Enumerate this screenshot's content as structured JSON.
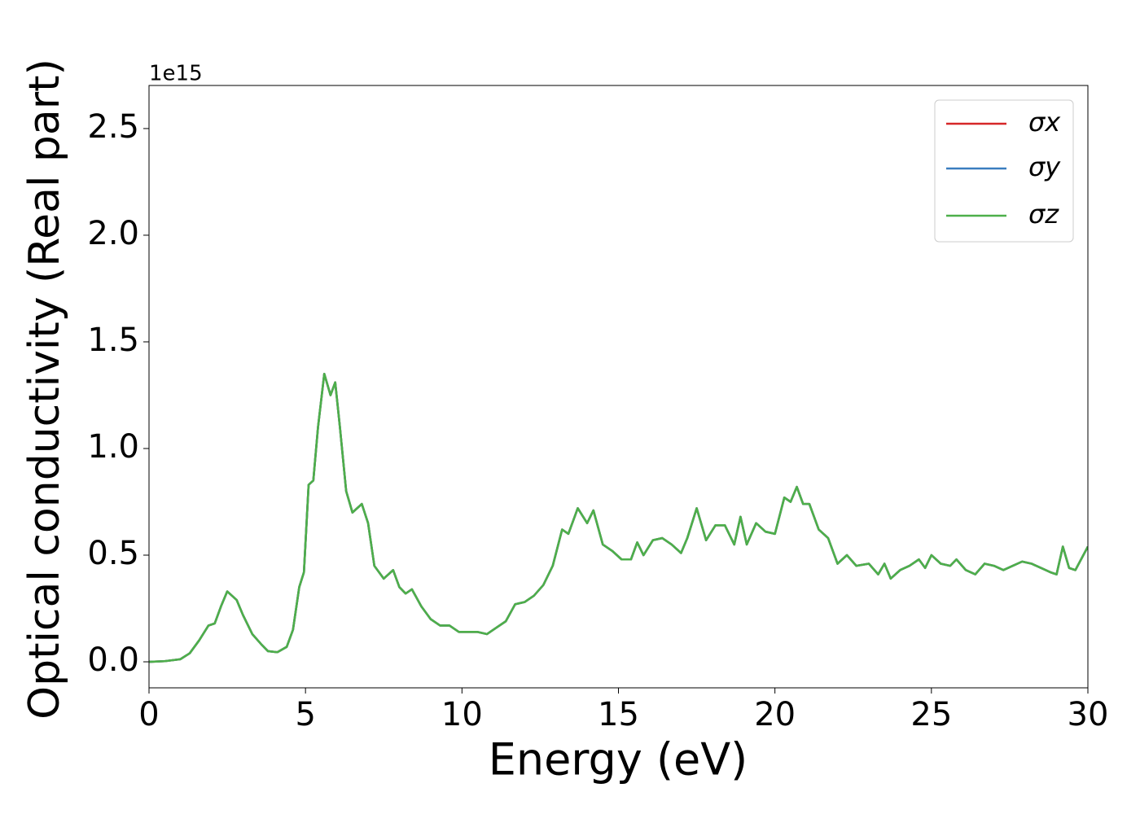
{
  "chart_data": {
    "type": "line",
    "xlabel": "Energy (eV)",
    "ylabel": "Optical conductivity (Real part)",
    "y_offset_label": "1e15",
    "xlim": [
      0,
      30
    ],
    "ylim": [
      -0.122,
      2.702
    ],
    "xticks": [
      0,
      5,
      10,
      15,
      20,
      25,
      30
    ],
    "yticks": [
      {
        "value": 0,
        "label": "0.0"
      },
      0.5,
      {
        "value": 1,
        "label": "1.0"
      },
      1.5,
      {
        "value": 2,
        "label": "2.0"
      },
      2.5
    ],
    "grid": false,
    "legend": "upper right",
    "x": [
      0,
      0.5,
      1,
      1.3,
      1.6,
      1.9,
      2.1,
      2.3,
      2.5,
      2.8,
      3.0,
      3.3,
      3.6,
      3.8,
      4.1,
      4.4,
      4.6,
      4.8,
      4.95,
      5.1,
      5.25,
      5.4,
      5.6,
      5.8,
      5.95,
      6.1,
      6.3,
      6.5,
      6.8,
      7.0,
      7.2,
      7.5,
      7.8,
      8.0,
      8.2,
      8.4,
      8.7,
      9.0,
      9.3,
      9.6,
      9.9,
      10.2,
      10.5,
      10.8,
      11.1,
      11.4,
      11.7,
      12.0,
      12.3,
      12.6,
      12.9,
      13.2,
      13.4,
      13.7,
      14.0,
      14.2,
      14.5,
      14.8,
      15.1,
      15.4,
      15.6,
      15.8,
      16.1,
      16.4,
      16.7,
      17.0,
      17.2,
      17.5,
      17.8,
      18.1,
      18.4,
      18.7,
      18.9,
      19.1,
      19.4,
      19.7,
      20.0,
      20.3,
      20.5,
      20.7,
      20.9,
      21.1,
      21.4,
      21.7,
      22.0,
      22.3,
      22.6,
      23.0,
      23.3,
      23.5,
      23.7,
      24.0,
      24.3,
      24.6,
      24.8,
      25.0,
      25.3,
      25.6,
      25.8,
      26.1,
      26.4,
      26.7,
      27.0,
      27.3,
      27.6,
      27.9,
      28.2,
      28.5,
      28.8,
      29.0,
      29.2,
      29.4,
      29.6,
      30.0
    ],
    "series": [
      {
        "name": "σx",
        "color": "#d62728",
        "values": [
          0,
          0.003,
          0.012,
          0.04,
          0.1,
          0.17,
          0.18,
          0.26,
          0.33,
          0.29,
          0.22,
          0.13,
          0.08,
          0.05,
          0.045,
          0.07,
          0.15,
          0.35,
          0.42,
          0.83,
          0.85,
          1.1,
          1.35,
          1.25,
          1.31,
          1.1,
          0.8,
          0.7,
          0.74,
          0.65,
          0.45,
          0.39,
          0.43,
          0.35,
          0.32,
          0.34,
          0.26,
          0.2,
          0.17,
          0.17,
          0.14,
          0.14,
          0.14,
          0.13,
          0.16,
          0.19,
          0.27,
          0.28,
          0.31,
          0.36,
          0.45,
          0.62,
          0.6,
          0.72,
          0.65,
          0.71,
          0.55,
          0.52,
          0.48,
          0.48,
          0.56,
          0.5,
          0.57,
          0.58,
          0.55,
          0.51,
          0.58,
          0.72,
          0.57,
          0.64,
          0.64,
          0.55,
          0.68,
          0.55,
          0.65,
          0.61,
          0.6,
          0.77,
          0.75,
          0.82,
          0.74,
          0.74,
          0.62,
          0.58,
          0.46,
          0.5,
          0.45,
          0.46,
          0.41,
          0.46,
          0.39,
          0.43,
          0.45,
          0.48,
          0.44,
          0.5,
          0.46,
          0.45,
          0.48,
          0.43,
          0.41,
          0.46,
          0.45,
          0.43,
          0.45,
          0.47,
          0.46,
          0.44,
          0.42,
          0.41,
          0.54,
          0.44,
          0.43,
          0.54
        ]
      },
      {
        "name": "σy",
        "color": "#3a7dbf",
        "values": [
          0,
          0.003,
          0.012,
          0.04,
          0.1,
          0.17,
          0.18,
          0.26,
          0.33,
          0.29,
          0.22,
          0.13,
          0.08,
          0.05,
          0.045,
          0.07,
          0.15,
          0.35,
          0.42,
          0.83,
          0.85,
          1.1,
          1.35,
          1.25,
          1.31,
          1.1,
          0.8,
          0.7,
          0.74,
          0.65,
          0.45,
          0.39,
          0.43,
          0.35,
          0.32,
          0.34,
          0.26,
          0.2,
          0.17,
          0.17,
          0.14,
          0.14,
          0.14,
          0.13,
          0.16,
          0.19,
          0.27,
          0.28,
          0.31,
          0.36,
          0.45,
          0.62,
          0.6,
          0.72,
          0.65,
          0.71,
          0.55,
          0.52,
          0.48,
          0.48,
          0.56,
          0.5,
          0.57,
          0.58,
          0.55,
          0.51,
          0.58,
          0.72,
          0.57,
          0.64,
          0.64,
          0.55,
          0.68,
          0.55,
          0.65,
          0.61,
          0.6,
          0.77,
          0.75,
          0.82,
          0.74,
          0.74,
          0.62,
          0.58,
          0.46,
          0.5,
          0.45,
          0.46,
          0.41,
          0.46,
          0.39,
          0.43,
          0.45,
          0.48,
          0.44,
          0.5,
          0.46,
          0.45,
          0.48,
          0.43,
          0.41,
          0.46,
          0.45,
          0.43,
          0.45,
          0.47,
          0.46,
          0.44,
          0.42,
          0.41,
          0.54,
          0.44,
          0.43,
          0.54
        ]
      },
      {
        "name": "σz",
        "color": "#4daf4a",
        "values": [
          0,
          0.003,
          0.012,
          0.04,
          0.1,
          0.17,
          0.18,
          0.26,
          0.33,
          0.29,
          0.22,
          0.13,
          0.08,
          0.05,
          0.045,
          0.07,
          0.15,
          0.35,
          0.42,
          0.83,
          0.85,
          1.1,
          1.35,
          1.25,
          1.31,
          1.1,
          0.8,
          0.7,
          0.74,
          0.65,
          0.45,
          0.39,
          0.43,
          0.35,
          0.32,
          0.34,
          0.26,
          0.2,
          0.17,
          0.17,
          0.14,
          0.14,
          0.14,
          0.13,
          0.16,
          0.19,
          0.27,
          0.28,
          0.31,
          0.36,
          0.45,
          0.62,
          0.6,
          0.72,
          0.65,
          0.71,
          0.55,
          0.52,
          0.48,
          0.48,
          0.56,
          0.5,
          0.57,
          0.58,
          0.55,
          0.51,
          0.58,
          0.72,
          0.57,
          0.64,
          0.64,
          0.55,
          0.68,
          0.55,
          0.65,
          0.61,
          0.6,
          0.77,
          0.75,
          0.82,
          0.74,
          0.74,
          0.62,
          0.58,
          0.46,
          0.5,
          0.45,
          0.46,
          0.41,
          0.46,
          0.39,
          0.43,
          0.45,
          0.48,
          0.44,
          0.5,
          0.46,
          0.45,
          0.48,
          0.43,
          0.41,
          0.46,
          0.45,
          0.43,
          0.45,
          0.47,
          0.46,
          0.44,
          0.42,
          0.41,
          0.54,
          0.44,
          0.43,
          0.54
        ]
      }
    ]
  }
}
